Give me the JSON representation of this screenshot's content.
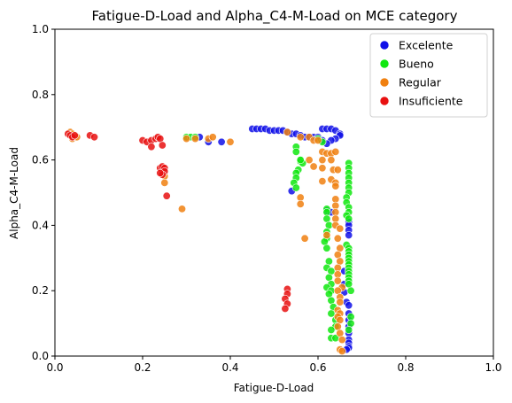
{
  "chart_data": {
    "type": "scatter",
    "title": "Fatigue-D-Load and Alpha_C4-M-Load on MCE category",
    "xlabel": "Fatigue-D-Load",
    "ylabel": "Alpha_C4-M-Load",
    "xlim": [
      0,
      1
    ],
    "ylim": [
      0,
      1
    ],
    "xticks": [
      "0.0",
      "0.2",
      "0.4",
      "0.6",
      "0.8",
      "1.0"
    ],
    "yticks": [
      "0.0",
      "0.2",
      "0.4",
      "0.6",
      "0.8",
      "1.0"
    ],
    "legend_position": "top-right",
    "series": [
      {
        "name": "Excelente",
        "color": "#1010e8",
        "points": [
          [
            0.45,
            0.695
          ],
          [
            0.46,
            0.695
          ],
          [
            0.47,
            0.695
          ],
          [
            0.48,
            0.695
          ],
          [
            0.49,
            0.69
          ],
          [
            0.5,
            0.69
          ],
          [
            0.51,
            0.69
          ],
          [
            0.52,
            0.69
          ],
          [
            0.53,
            0.685
          ],
          [
            0.54,
            0.68
          ],
          [
            0.55,
            0.68
          ],
          [
            0.56,
            0.675
          ],
          [
            0.57,
            0.67
          ],
          [
            0.58,
            0.67
          ],
          [
            0.59,
            0.67
          ],
          [
            0.6,
            0.67
          ],
          [
            0.61,
            0.695
          ],
          [
            0.62,
            0.695
          ],
          [
            0.63,
            0.695
          ],
          [
            0.64,
            0.69
          ],
          [
            0.65,
            0.68
          ],
          [
            0.65,
            0.675
          ],
          [
            0.64,
            0.665
          ],
          [
            0.63,
            0.66
          ],
          [
            0.62,
            0.65
          ],
          [
            0.61,
            0.66
          ],
          [
            0.35,
            0.655
          ],
          [
            0.38,
            0.655
          ],
          [
            0.33,
            0.67
          ],
          [
            0.54,
            0.505
          ],
          [
            0.62,
            0.445
          ],
          [
            0.63,
            0.44
          ],
          [
            0.67,
            0.41
          ],
          [
            0.67,
            0.4
          ],
          [
            0.67,
            0.385
          ],
          [
            0.67,
            0.37
          ],
          [
            0.66,
            0.26
          ],
          [
            0.66,
            0.22
          ],
          [
            0.66,
            0.195
          ],
          [
            0.665,
            0.165
          ],
          [
            0.67,
            0.155
          ],
          [
            0.67,
            0.13
          ],
          [
            0.67,
            0.11
          ],
          [
            0.67,
            0.09
          ],
          [
            0.67,
            0.07
          ],
          [
            0.67,
            0.05
          ],
          [
            0.67,
            0.04
          ],
          [
            0.67,
            0.03
          ],
          [
            0.67,
            0.025
          ],
          [
            0.665,
            0.02
          ]
        ]
      },
      {
        "name": "Bueno",
        "color": "#10e810",
        "points": [
          [
            0.3,
            0.67
          ],
          [
            0.31,
            0.67
          ],
          [
            0.32,
            0.67
          ],
          [
            0.55,
            0.64
          ],
          [
            0.55,
            0.625
          ],
          [
            0.56,
            0.6
          ],
          [
            0.56,
            0.595
          ],
          [
            0.565,
            0.59
          ],
          [
            0.555,
            0.57
          ],
          [
            0.55,
            0.56
          ],
          [
            0.55,
            0.545
          ],
          [
            0.545,
            0.53
          ],
          [
            0.55,
            0.515
          ],
          [
            0.56,
            0.6
          ],
          [
            0.6,
            0.665
          ],
          [
            0.61,
            0.655
          ],
          [
            0.62,
            0.45
          ],
          [
            0.62,
            0.44
          ],
          [
            0.62,
            0.42
          ],
          [
            0.625,
            0.4
          ],
          [
            0.62,
            0.38
          ],
          [
            0.62,
            0.36
          ],
          [
            0.615,
            0.35
          ],
          [
            0.62,
            0.33
          ],
          [
            0.625,
            0.29
          ],
          [
            0.62,
            0.27
          ],
          [
            0.63,
            0.26
          ],
          [
            0.625,
            0.24
          ],
          [
            0.63,
            0.22
          ],
          [
            0.62,
            0.21
          ],
          [
            0.63,
            0.2
          ],
          [
            0.625,
            0.19
          ],
          [
            0.63,
            0.17
          ],
          [
            0.635,
            0.15
          ],
          [
            0.63,
            0.13
          ],
          [
            0.64,
            0.11
          ],
          [
            0.64,
            0.09
          ],
          [
            0.63,
            0.08
          ],
          [
            0.63,
            0.055
          ],
          [
            0.64,
            0.055
          ],
          [
            0.67,
            0.59
          ],
          [
            0.67,
            0.575
          ],
          [
            0.67,
            0.56
          ],
          [
            0.67,
            0.545
          ],
          [
            0.67,
            0.53
          ],
          [
            0.67,
            0.515
          ],
          [
            0.67,
            0.5
          ],
          [
            0.665,
            0.485
          ],
          [
            0.665,
            0.47
          ],
          [
            0.67,
            0.455
          ],
          [
            0.67,
            0.44
          ],
          [
            0.665,
            0.43
          ],
          [
            0.67,
            0.42
          ],
          [
            0.665,
            0.34
          ],
          [
            0.67,
            0.33
          ],
          [
            0.67,
            0.32
          ],
          [
            0.67,
            0.31
          ],
          [
            0.67,
            0.3
          ],
          [
            0.67,
            0.29
          ],
          [
            0.67,
            0.28
          ],
          [
            0.67,
            0.27
          ],
          [
            0.67,
            0.26
          ],
          [
            0.67,
            0.25
          ],
          [
            0.67,
            0.24
          ],
          [
            0.67,
            0.23
          ],
          [
            0.67,
            0.22
          ],
          [
            0.675,
            0.2
          ],
          [
            0.675,
            0.12
          ],
          [
            0.675,
            0.1
          ],
          [
            0.67,
            0.08
          ]
        ]
      },
      {
        "name": "Regular",
        "color": "#f08010",
        "points": [
          [
            0.035,
            0.685
          ],
          [
            0.04,
            0.68
          ],
          [
            0.045,
            0.675
          ],
          [
            0.04,
            0.67
          ],
          [
            0.035,
            0.675
          ],
          [
            0.04,
            0.665
          ],
          [
            0.045,
            0.67
          ],
          [
            0.05,
            0.67
          ],
          [
            0.3,
            0.665
          ],
          [
            0.32,
            0.665
          ],
          [
            0.35,
            0.665
          ],
          [
            0.36,
            0.67
          ],
          [
            0.4,
            0.655
          ],
          [
            0.25,
            0.55
          ],
          [
            0.25,
            0.53
          ],
          [
            0.29,
            0.45
          ],
          [
            0.53,
            0.685
          ],
          [
            0.56,
            0.67
          ],
          [
            0.58,
            0.67
          ],
          [
            0.59,
            0.66
          ],
          [
            0.6,
            0.66
          ],
          [
            0.61,
            0.625
          ],
          [
            0.62,
            0.62
          ],
          [
            0.63,
            0.62
          ],
          [
            0.64,
            0.625
          ],
          [
            0.58,
            0.6
          ],
          [
            0.61,
            0.6
          ],
          [
            0.63,
            0.6
          ],
          [
            0.59,
            0.58
          ],
          [
            0.61,
            0.575
          ],
          [
            0.635,
            0.57
          ],
          [
            0.645,
            0.57
          ],
          [
            0.61,
            0.535
          ],
          [
            0.63,
            0.54
          ],
          [
            0.64,
            0.53
          ],
          [
            0.64,
            0.52
          ],
          [
            0.56,
            0.485
          ],
          [
            0.56,
            0.465
          ],
          [
            0.64,
            0.48
          ],
          [
            0.64,
            0.46
          ],
          [
            0.64,
            0.44
          ],
          [
            0.64,
            0.42
          ],
          [
            0.64,
            0.4
          ],
          [
            0.57,
            0.36
          ],
          [
            0.62,
            0.37
          ],
          [
            0.65,
            0.39
          ],
          [
            0.645,
            0.36
          ],
          [
            0.65,
            0.33
          ],
          [
            0.645,
            0.31
          ],
          [
            0.65,
            0.29
          ],
          [
            0.645,
            0.27
          ],
          [
            0.645,
            0.25
          ],
          [
            0.645,
            0.23
          ],
          [
            0.655,
            0.21
          ],
          [
            0.645,
            0.2
          ],
          [
            0.65,
            0.18
          ],
          [
            0.65,
            0.165
          ],
          [
            0.645,
            0.14
          ],
          [
            0.65,
            0.13
          ],
          [
            0.645,
            0.12
          ],
          [
            0.65,
            0.11
          ],
          [
            0.645,
            0.09
          ],
          [
            0.65,
            0.07
          ],
          [
            0.655,
            0.05
          ],
          [
            0.65,
            0.02
          ],
          [
            0.655,
            0.015
          ]
        ]
      },
      {
        "name": "Insuficiente",
        "color": "#e81010",
        "points": [
          [
            0.03,
            0.68
          ],
          [
            0.035,
            0.675
          ],
          [
            0.04,
            0.67
          ],
          [
            0.045,
            0.675
          ],
          [
            0.08,
            0.675
          ],
          [
            0.09,
            0.67
          ],
          [
            0.2,
            0.66
          ],
          [
            0.21,
            0.655
          ],
          [
            0.22,
            0.66
          ],
          [
            0.23,
            0.665
          ],
          [
            0.235,
            0.67
          ],
          [
            0.24,
            0.665
          ],
          [
            0.245,
            0.645
          ],
          [
            0.22,
            0.64
          ],
          [
            0.24,
            0.575
          ],
          [
            0.245,
            0.58
          ],
          [
            0.25,
            0.575
          ],
          [
            0.25,
            0.565
          ],
          [
            0.245,
            0.555
          ],
          [
            0.24,
            0.56
          ],
          [
            0.255,
            0.49
          ],
          [
            0.53,
            0.205
          ],
          [
            0.53,
            0.19
          ],
          [
            0.525,
            0.175
          ],
          [
            0.53,
            0.16
          ],
          [
            0.525,
            0.145
          ]
        ]
      }
    ]
  }
}
